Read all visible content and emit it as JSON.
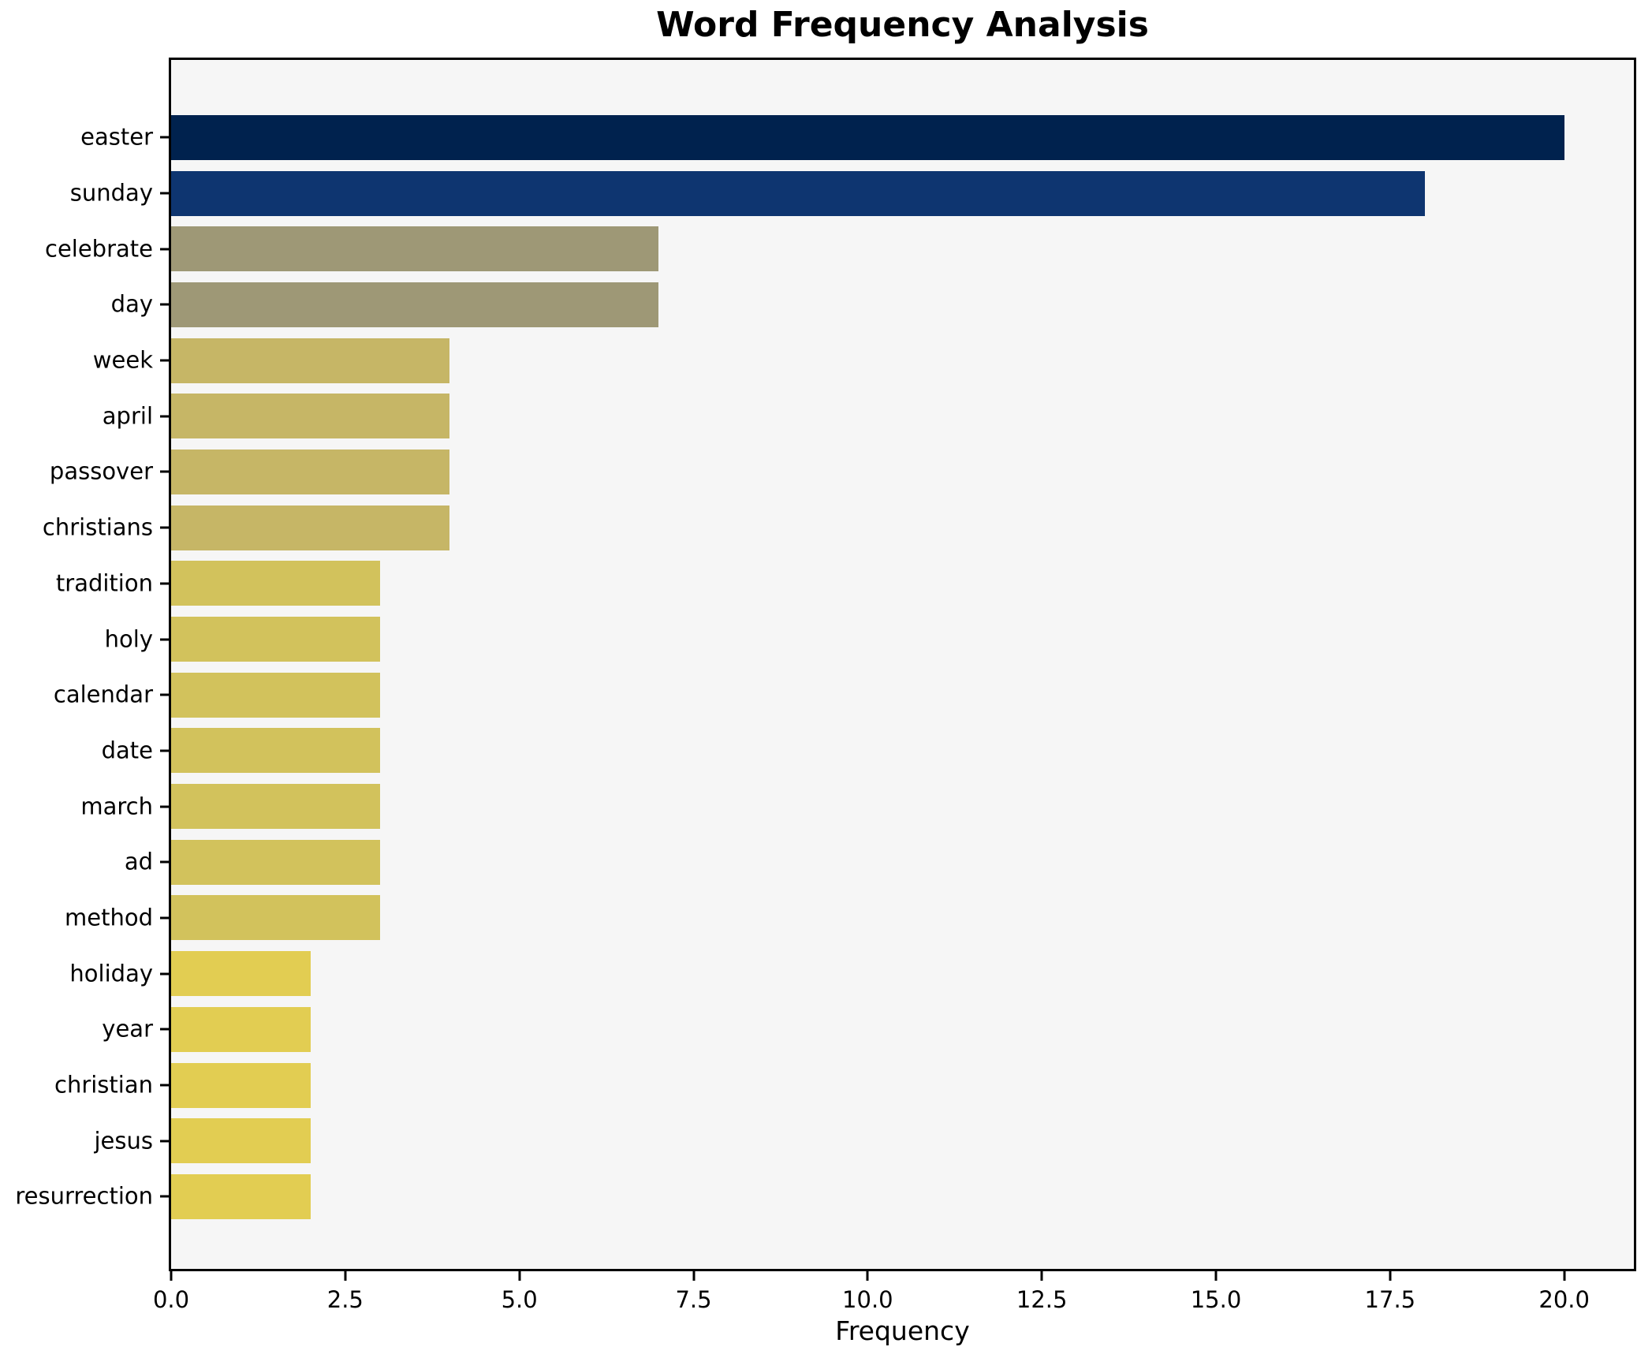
{
  "figure": {
    "background": "#ffffff",
    "plot_background": "#f6f6f6",
    "spine_color": "#000000",
    "tick_color": "#000000",
    "title_color": "#000000"
  },
  "chart_data": {
    "type": "bar",
    "orientation": "horizontal",
    "title": "Word Frequency Analysis",
    "xlabel": "Frequency",
    "ylabel": "",
    "grid": false,
    "legend": false,
    "xlim": [
      0,
      21
    ],
    "xticks": [
      0,
      2.5,
      5,
      7.5,
      10,
      12.5,
      15,
      17.5,
      20
    ],
    "xtick_labels": [
      "0.0",
      "2.5",
      "5.0",
      "7.5",
      "10.0",
      "12.5",
      "15.0",
      "17.5",
      "20.0"
    ],
    "categories": [
      "easter",
      "sunday",
      "celebrate",
      "day",
      "week",
      "april",
      "passover",
      "christians",
      "tradition",
      "holy",
      "calendar",
      "date",
      "march",
      "ad",
      "method",
      "holiday",
      "year",
      "christian",
      "jesus",
      "resurrection"
    ],
    "values": [
      20,
      18,
      7,
      7,
      4,
      4,
      4,
      4,
      3,
      3,
      3,
      3,
      3,
      3,
      3,
      2,
      2,
      2,
      2,
      2
    ],
    "bar_colors": [
      "#00224e",
      "#0e3570",
      "#9e9876",
      "#9e9876",
      "#c6b666",
      "#c6b666",
      "#c6b666",
      "#c6b666",
      "#d2c25c",
      "#d2c25c",
      "#d2c25c",
      "#d2c25c",
      "#d2c25c",
      "#d2c25c",
      "#d2c25c",
      "#e2cd52",
      "#e2cd52",
      "#e2cd52",
      "#e2cd52",
      "#e2cd52"
    ]
  }
}
